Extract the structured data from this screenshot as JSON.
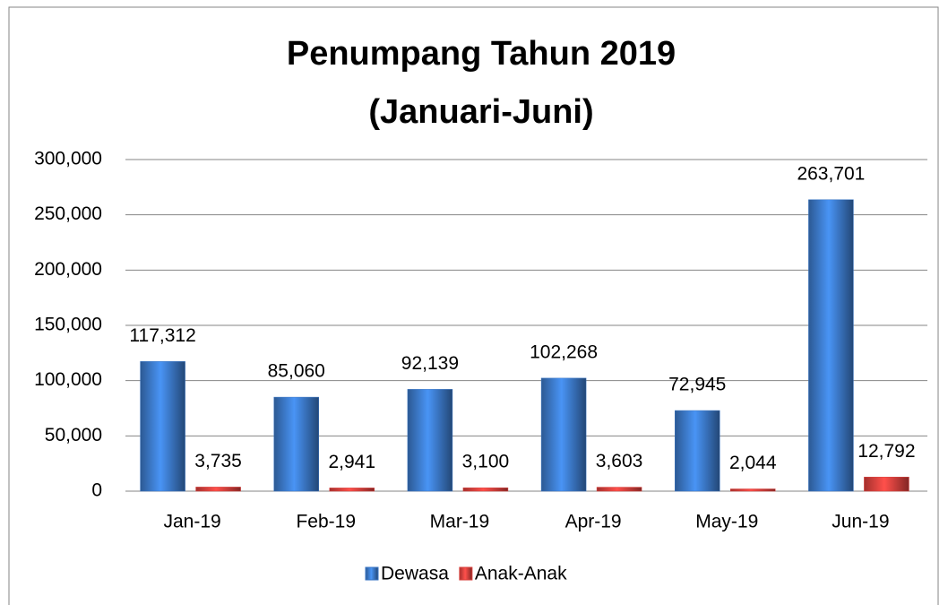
{
  "chart_data": {
    "type": "bar",
    "title": [
      "Penumpang Tahun 2019",
      "(Januari-Juni)"
    ],
    "categories": [
      "Jan-19",
      "Feb-19",
      "Mar-19",
      "Apr-19",
      "May-19",
      "Jun-19"
    ],
    "series": [
      {
        "name": "Dewasa",
        "color": "#3a76c4",
        "values": [
          117312,
          85060,
          92139,
          102268,
          72945,
          263701
        ],
        "value_labels": [
          "117,312",
          "85,060",
          "92,139",
          "102,268",
          "72,945",
          "263,701"
        ]
      },
      {
        "name": "Anak-Anak",
        "color": "#d9403c",
        "values": [
          3735,
          2941,
          3100,
          3603,
          2044,
          12792
        ],
        "value_labels": [
          "3,735",
          "2,941",
          "3,100",
          "3,603",
          "2,044",
          "12,792"
        ]
      }
    ],
    "ylim": [
      0,
      300000
    ],
    "yticks": [
      0,
      {
        "value": 50000,
        "label": "50,000"
      },
      {
        "value": 100000,
        "label": "100,000"
      },
      {
        "value": 150000,
        "label": "150,000"
      },
      {
        "value": 200000,
        "label": "200,000"
      },
      {
        "value": 250000,
        "label": "250,000"
      },
      {
        "value": 300000,
        "label": "300,000"
      }
    ],
    "grid": true,
    "legend": "bottom"
  }
}
